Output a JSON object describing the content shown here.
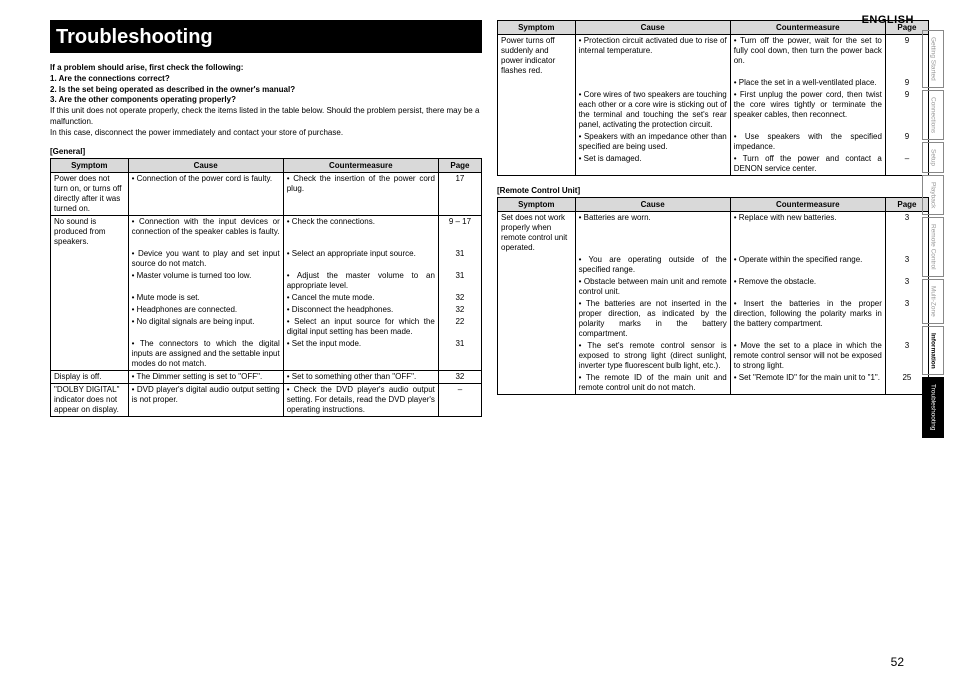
{
  "lang_label": "ENGLISH",
  "page_number": "52",
  "title": "Troubleshooting",
  "intro": {
    "lead": "If a problem should arise, first check the following:",
    "q1": "1.  Are the connections correct?",
    "q2": "2.  Is the set being operated as described in the owner's manual?",
    "q3": "3.  Are the other components operating properly?",
    "body1": "If this unit does not operate properly, check the items listed in the table below. Should the problem persist, there may be a malfunction.",
    "body2": "In this case, disconnect the power immediately and contact your store of purchase."
  },
  "headers": {
    "symptom": "Symptom",
    "cause": "Cause",
    "cm": "Countermeasure",
    "page": "Page"
  },
  "section_general": "[General]",
  "table_general": [
    {
      "sym": "Power does not turn on, or turns off directly after it was turned on.",
      "cause": "Connection of the power cord is faulty.",
      "cm": "Check the insertion of the power cord plug.",
      "pg": "17",
      "last": true
    },
    {
      "sym": "No sound is produced from speakers.",
      "cause": "Connection with the input devices or connection of the speaker cables is faulty.",
      "cm": "Check the connections.",
      "pg": "9 – 17",
      "last": false
    },
    {
      "sym": "",
      "cause": "Device you want to play and set input source do not match.",
      "cm": "Select an appropriate input source.",
      "pg": "31",
      "last": false
    },
    {
      "sym": "",
      "cause": "Master volume is turned too low.",
      "cm": "Adjust the master volume to an appropriate level.",
      "pg": "31",
      "last": false
    },
    {
      "sym": "",
      "cause": "Mute mode is set.",
      "cm": "Cancel the mute mode.",
      "pg": "32",
      "last": false
    },
    {
      "sym": "",
      "cause": "Headphones are connected.",
      "cm": "Disconnect the headphones.",
      "pg": "32",
      "last": false
    },
    {
      "sym": "",
      "cause": "No digital signals are being input.",
      "cm": "Select an input source for which the digital input setting has been made.",
      "pg": "22",
      "last": false
    },
    {
      "sym": "",
      "cause": "The connectors to which the digital inputs are assigned and the settable input modes do not match.",
      "cm": "Set the input mode.",
      "pg": "31",
      "last": true
    },
    {
      "sym": "Display is off.",
      "cause": "The Dimmer setting is set to \"OFF\".",
      "cm": "Set to something other than \"OFF\".",
      "pg": "32",
      "last": true
    },
    {
      "sym": "\"DOLBY DIGITAL\" indicator does not appear on display.",
      "cause": "DVD player's digital audio output setting is not proper.",
      "cm": "Check the DVD player's audio output setting. For details, read the DVD player's operating instructions.",
      "pg": "–",
      "last": true
    }
  ],
  "table_power": [
    {
      "sym": "Power turns off suddenly and power indicator flashes red.",
      "cause": "Protection circuit activated due to rise of internal temperature.",
      "cm": "Turn off the power, wait for the set to fully cool down, then turn the power back on.",
      "pg": "9",
      "last": false
    },
    {
      "sym": "",
      "cause": "",
      "cm": "Place the set in a well-ventilated place.",
      "pg": "9",
      "last": false
    },
    {
      "sym": "",
      "cause": "Core wires of two speakers are touching each other or a core wire is sticking out of the terminal and touching the set's rear panel, activating the protection circuit.",
      "cm": "First unplug the power cord, then twist the core wires tightly or terminate the speaker cables, then reconnect.",
      "pg": "9",
      "last": false
    },
    {
      "sym": "",
      "cause": "Speakers with an impedance other than specified are being used.",
      "cm": "Use speakers with the specified impedance.",
      "pg": "9",
      "last": false
    },
    {
      "sym": "",
      "cause": "Set is damaged.",
      "cm": "Turn off the power and contact a DENON service center.",
      "pg": "–",
      "last": true
    }
  ],
  "section_remote": "[Remote Control Unit]",
  "table_remote": [
    {
      "sym": "Set does not work properly when remote control unit operated.",
      "cause": "Batteries are worn.",
      "cm": "Replace with new batteries.",
      "pg": "3",
      "last": false
    },
    {
      "sym": "",
      "cause": "You are operating outside of the specified range.",
      "cm": "Operate within the specified range.",
      "pg": "3",
      "last": false
    },
    {
      "sym": "",
      "cause": "Obstacle between main unit and remote control unit.",
      "cm": "Remove the obstacle.",
      "pg": "3",
      "last": false
    },
    {
      "sym": "",
      "cause": "The batteries are not inserted in the proper direction, as indicated by the polarity marks in the battery compartment.",
      "cm": "Insert the batteries in the proper direction, following the polarity marks in the battery compartment.",
      "pg": "3",
      "last": false
    },
    {
      "sym": "",
      "cause": "The set's remote control sensor is exposed to strong light (direct sunlight, inverter type fluorescent bulb light, etc.).",
      "cm": "Move the set to a place in which the remote control sensor will not be exposed to strong light.",
      "pg": "3",
      "last": false
    },
    {
      "sym": "",
      "cause": "The remote ID of the main unit and remote control unit do not match.",
      "cm": "Set \"Remote ID\" for the main unit to \"1\".",
      "pg": "25",
      "last": true
    }
  ],
  "tabs": [
    {
      "label": "Getting Started",
      "active": false
    },
    {
      "label": "Connections",
      "active": false
    },
    {
      "label": "Setup",
      "active": false
    },
    {
      "label": "Playback",
      "active": false
    },
    {
      "label": "Remote Control",
      "active": false
    },
    {
      "label": "Multi-Zone",
      "active": false
    },
    {
      "label": "Information",
      "semi": true
    },
    {
      "label": "Troubleshooting",
      "active": true
    }
  ]
}
